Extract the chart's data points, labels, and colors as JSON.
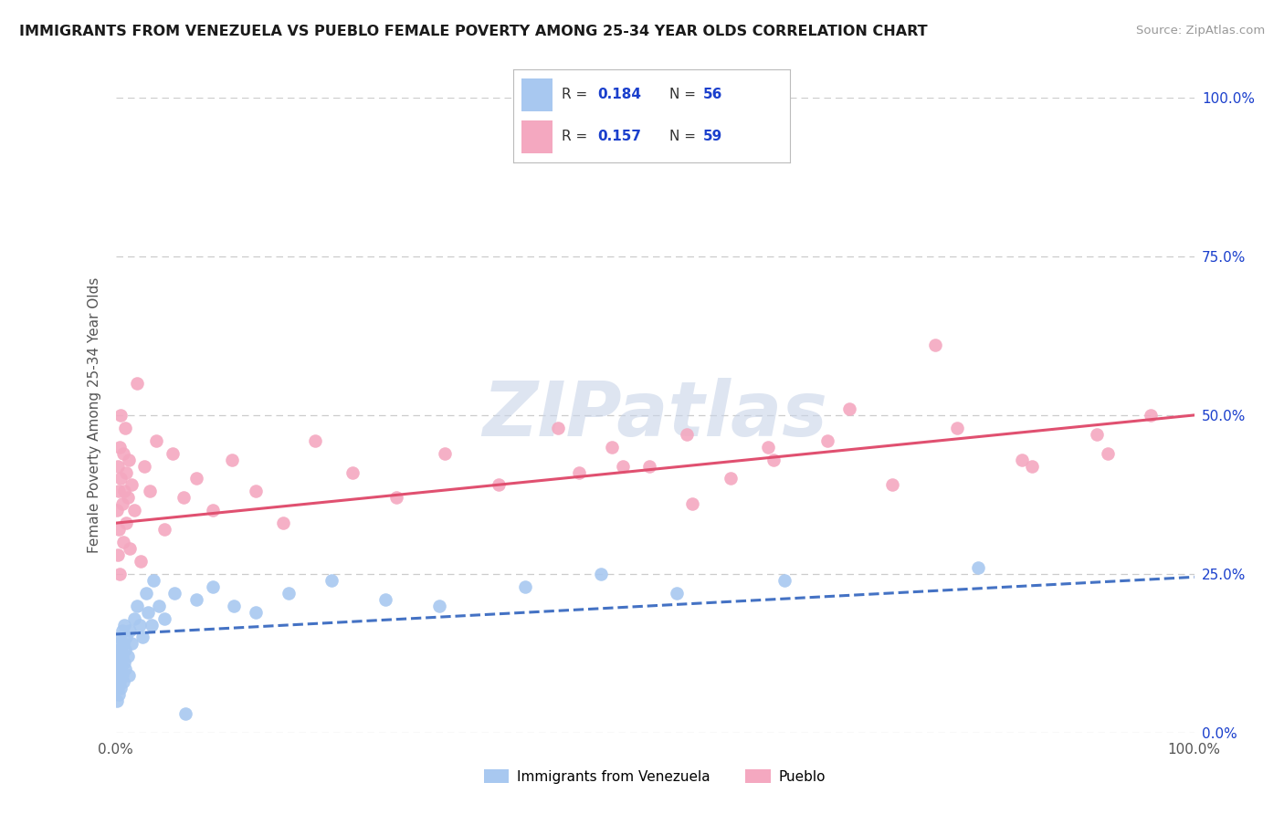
{
  "title": "IMMIGRANTS FROM VENEZUELA VS PUEBLO FEMALE POVERTY AMONG 25-34 YEAR OLDS CORRELATION CHART",
  "source": "Source: ZipAtlas.com",
  "ylabel": "Female Poverty Among 25-34 Year Olds",
  "legend_blue_r": "0.184",
  "legend_blue_n": "56",
  "legend_pink_r": "0.157",
  "legend_pink_n": "59",
  "legend_label_blue": "Immigrants from Venezuela",
  "legend_label_pink": "Pueblo",
  "blue_color": "#a8c8f0",
  "pink_color": "#f4a8c0",
  "blue_line_color": "#4472c4",
  "pink_line_color": "#e05070",
  "title_color": "#1a1a1a",
  "source_color": "#999999",
  "r_value_color": "#1a3fcc",
  "n_value_color": "#1a3fcc",
  "watermark_color": "#c8d4e8",
  "background_color": "#ffffff",
  "grid_color": "#d8d8d8",
  "blue_line_x0": 0.0,
  "blue_line_x1": 1.0,
  "blue_line_y0": 0.155,
  "blue_line_y1": 0.245,
  "pink_line_x0": 0.0,
  "pink_line_x1": 1.0,
  "pink_line_y0": 0.33,
  "pink_line_y1": 0.5,
  "blue_points_x": [
    0.001,
    0.001,
    0.001,
    0.002,
    0.002,
    0.002,
    0.002,
    0.003,
    0.003,
    0.003,
    0.003,
    0.004,
    0.004,
    0.004,
    0.005,
    0.005,
    0.005,
    0.006,
    0.006,
    0.006,
    0.007,
    0.007,
    0.008,
    0.008,
    0.009,
    0.009,
    0.01,
    0.011,
    0.012,
    0.013,
    0.015,
    0.017,
    0.02,
    0.022,
    0.025,
    0.028,
    0.03,
    0.033,
    0.035,
    0.04,
    0.045,
    0.055,
    0.065,
    0.075,
    0.09,
    0.11,
    0.13,
    0.16,
    0.2,
    0.25,
    0.3,
    0.38,
    0.45,
    0.52,
    0.62,
    0.8
  ],
  "blue_points_y": [
    0.1,
    0.05,
    0.08,
    0.12,
    0.07,
    0.09,
    0.14,
    0.11,
    0.06,
    0.13,
    0.09,
    0.15,
    0.08,
    0.11,
    0.13,
    0.07,
    0.1,
    0.16,
    0.09,
    0.12,
    0.14,
    0.08,
    0.11,
    0.17,
    0.1,
    0.13,
    0.15,
    0.12,
    0.09,
    0.16,
    0.14,
    0.18,
    0.2,
    0.17,
    0.15,
    0.22,
    0.19,
    0.17,
    0.24,
    0.2,
    0.18,
    0.22,
    0.03,
    0.21,
    0.23,
    0.2,
    0.19,
    0.22,
    0.24,
    0.21,
    0.2,
    0.23,
    0.25,
    0.22,
    0.24,
    0.26
  ],
  "pink_points_x": [
    0.001,
    0.002,
    0.002,
    0.003,
    0.003,
    0.004,
    0.004,
    0.005,
    0.005,
    0.006,
    0.007,
    0.007,
    0.008,
    0.009,
    0.01,
    0.01,
    0.011,
    0.012,
    0.013,
    0.015,
    0.017,
    0.02,
    0.023,
    0.027,
    0.032,
    0.038,
    0.045,
    0.053,
    0.063,
    0.075,
    0.09,
    0.108,
    0.13,
    0.155,
    0.185,
    0.22,
    0.26,
    0.305,
    0.355,
    0.41,
    0.47,
    0.535,
    0.605,
    0.68,
    0.76,
    0.84,
    0.91,
    0.96,
    0.92,
    0.85,
    0.78,
    0.72,
    0.66,
    0.61,
    0.57,
    0.53,
    0.495,
    0.46,
    0.43
  ],
  "pink_points_y": [
    0.35,
    0.42,
    0.28,
    0.38,
    0.32,
    0.45,
    0.25,
    0.4,
    0.5,
    0.36,
    0.44,
    0.3,
    0.38,
    0.48,
    0.33,
    0.41,
    0.37,
    0.43,
    0.29,
    0.39,
    0.35,
    0.55,
    0.27,
    0.42,
    0.38,
    0.46,
    0.32,
    0.44,
    0.37,
    0.4,
    0.35,
    0.43,
    0.38,
    0.33,
    0.46,
    0.41,
    0.37,
    0.44,
    0.39,
    0.48,
    0.42,
    0.36,
    0.45,
    0.51,
    0.61,
    0.43,
    0.47,
    0.5,
    0.44,
    0.42,
    0.48,
    0.39,
    0.46,
    0.43,
    0.4,
    0.47,
    0.42,
    0.45,
    0.41
  ],
  "xlim": [
    0.0,
    1.0
  ],
  "ylim": [
    0.0,
    1.0
  ],
  "yticks": [
    0.0,
    0.25,
    0.5,
    0.75,
    1.0
  ],
  "ytick_labels_right": [
    "0.0%",
    "25.0%",
    "50.0%",
    "75.0%",
    "100.0%"
  ]
}
